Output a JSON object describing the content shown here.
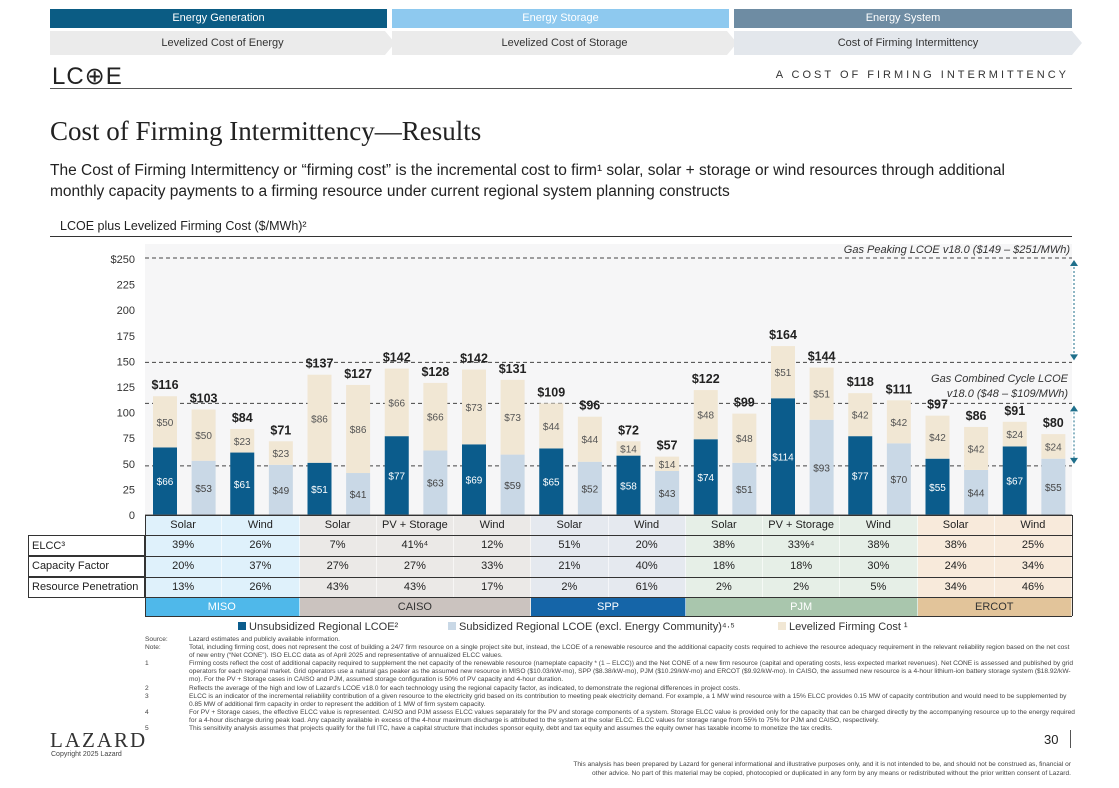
{
  "nav": {
    "tabs": [
      {
        "label": "Energy Generation",
        "color": "#0b5c84"
      },
      {
        "label": "Energy Storage",
        "color": "#8ec9ef"
      },
      {
        "label": "Energy System",
        "color": "#6e8ca3"
      }
    ],
    "subtabs": [
      "Levelized Cost of Energy",
      "Levelized Cost of Storage",
      "Cost of Firming Intermittency"
    ]
  },
  "header": {
    "logo": "LC⊕E",
    "section": "A   COST OF FIRMING INTERMITTENCY"
  },
  "title": "Cost of Firming Intermittency—Results",
  "subtitle": "The Cost of Firming Intermittency or “firming cost” is the incremental cost to firm¹ solar, solar + storage or wind resources through additional monthly capacity payments to a firming resource under current regional system planning constructs",
  "chart_data": {
    "type": "bar",
    "stacked": true,
    "title": "LCOE plus Levelized Firming Cost ($/MWh)²",
    "ylim": [
      0,
      250
    ],
    "yticks": [
      0,
      25,
      50,
      75,
      100,
      125,
      150,
      175,
      200,
      225,
      250
    ],
    "ytick_prefix": "$ on top tick",
    "ytick_labels": [
      "0",
      "25",
      "50",
      "75",
      "100",
      "125",
      "150",
      "175",
      "200",
      "225",
      "$250"
    ],
    "series_names": [
      "Unsubsidized Regional LCOE²",
      "Subsidized Regional LCOE (excl. Energy Community)⁴·⁵",
      "Levelized Firming Cost ¹"
    ],
    "colors": {
      "unsubsidized": "#0b5c8c",
      "subsidized": "#c9d8e6",
      "firming": "#f1e7d4"
    },
    "columns": [
      {
        "region": "MISO",
        "tech": "Solar",
        "unsub": 66,
        "sub": 53,
        "firming": 50,
        "total_unsub": "$116",
        "total_sub": "$103"
      },
      {
        "region": "MISO",
        "tech": "Wind",
        "unsub": 61,
        "sub": 49,
        "firming": 23,
        "total_unsub": "$84",
        "total_sub": "$71"
      },
      {
        "region": "CAISO",
        "tech": "Solar",
        "unsub": 51,
        "sub": 41,
        "firming": 86,
        "total_unsub": "$137",
        "total_sub": "$127"
      },
      {
        "region": "CAISO",
        "tech": "PV + Storage",
        "unsub": 77,
        "sub": 63,
        "firming": 66,
        "total_unsub": "$142",
        "total_sub": "$128"
      },
      {
        "region": "CAISO",
        "tech": "Wind",
        "unsub": 69,
        "sub": 59,
        "firming": 73,
        "total_unsub": "$142",
        "total_sub": "$131"
      },
      {
        "region": "SPP",
        "tech": "Solar",
        "unsub": 65,
        "sub": 52,
        "firming": 44,
        "total_unsub": "$109",
        "total_sub": "$96"
      },
      {
        "region": "SPP",
        "tech": "Wind",
        "unsub": 58,
        "sub": 43,
        "firming": 14,
        "total_unsub": "$72",
        "total_sub": "$57"
      },
      {
        "region": "PJM",
        "tech": "Solar",
        "unsub": 74,
        "sub": 51,
        "firming": 48,
        "total_unsub": "$122",
        "total_sub": "$99"
      },
      {
        "region": "PJM",
        "tech": "PV + Storage",
        "unsub": 114,
        "sub": 93,
        "firming": 51,
        "total_unsub": "$164",
        "total_sub": "$144"
      },
      {
        "region": "PJM",
        "tech": "Wind",
        "unsub": 77,
        "sub": 70,
        "firming": 42,
        "total_unsub": "$118",
        "total_sub": "$111"
      },
      {
        "region": "ERCOT",
        "tech": "Solar",
        "unsub": 55,
        "sub": 44,
        "firming": 42,
        "total_unsub": "$97",
        "total_sub": "$86"
      },
      {
        "region": "ERCOT",
        "tech": "Wind",
        "unsub": 67,
        "sub": 55,
        "firming": 24,
        "total_unsub": "$91",
        "total_sub": "$80"
      }
    ],
    "reference_ranges": [
      {
        "label": "Gas Peaking LCOE v18.0 ($149 – $251/MWh)",
        "low": 149,
        "high": 251
      },
      {
        "label_line1": "Gas Combined Cycle LCOE",
        "label_line2": "v18.0 ($48 – $109/MWh)",
        "low": 48,
        "high": 109
      }
    ]
  },
  "table": {
    "row_labels": [
      "ELCC³",
      "Capacity Factor",
      "Resource Penetration"
    ],
    "elcc": [
      "39%",
      "26%",
      "7%",
      "41%⁴",
      "12%",
      "51%",
      "20%",
      "38%",
      "33%⁴",
      "38%",
      "38%",
      "25%"
    ],
    "capacity_factor": [
      "20%",
      "37%",
      "27%",
      "27%",
      "33%",
      "21%",
      "40%",
      "18%",
      "18%",
      "30%",
      "24%",
      "34%"
    ],
    "penetration": [
      "13%",
      "26%",
      "43%",
      "43%",
      "17%",
      "2%",
      "61%",
      "2%",
      "2%",
      "5%",
      "34%",
      "46%"
    ],
    "regions": [
      {
        "name": "MISO",
        "span": 2,
        "bg": "#dff1fb",
        "label_bg": "#4fb8ea",
        "label_color": "#ffffff"
      },
      {
        "name": "CAISO",
        "span": 3,
        "bg": "#ebe9e7",
        "label_bg": "#cbc3bf",
        "label_color": "#333333"
      },
      {
        "name": "SPP",
        "span": 2,
        "bg": "#e5e9ef",
        "label_bg": "#1565a8",
        "label_color": "#ffffff"
      },
      {
        "name": "PJM",
        "span": 3,
        "bg": "#e6efe7",
        "label_bg": "#a9c6ad",
        "label_color": "#ffffff"
      },
      {
        "name": "ERCOT",
        "span": 2,
        "bg": "#f8eadb",
        "label_bg": "#e2c49a",
        "label_color": "#333333"
      }
    ]
  },
  "notes": [
    [
      "Source:",
      "Lazard estimates and publicly available information."
    ],
    [
      "Note:",
      "Total, including firming cost, does not represent the cost of building a 24/7 firm resource on a single project site but, instead, the LCOE of a renewable resource and the additional capacity costs required to achieve the resource adequacy requirement in the relevant reliability region based on the net cost of new entry (“Net CONE”). ISO ELCC data as of April 2025 and representative of annualized ELCC values."
    ],
    [
      "1",
      "Firming costs reflect the cost of additional capacity required to supplement the net capacity of the renewable resource (nameplate capacity * (1 – ELCC)) and the Net CONE of a new firm resource (capital and operating costs, less expected market revenues). Net CONE is assessed and published by grid operators for each regional market. Grid operators use a natural gas peaker as the assumed new resource in MISO ($10.03/kW-mo), SPP ($8.38/kW-mo), PJM ($10.29/kW-mo) and ERCOT ($9.92/kW-mo). In CAISO, the assumed new resource is a 4-hour lithium-ion battery storage system ($18.92/kW-mo). For the PV + Storage cases in CAISO and PJM, assumed storage configuration is 50% of PV capacity and 4-hour duration."
    ],
    [
      "2",
      "Reflects the average of the high and low of Lazard’s LCOE v18.0 for each technology using the regional capacity factor, as indicated, to demonstrate the regional differences in project costs."
    ],
    [
      "3",
      "ELCC is an indicator of the incremental reliability contribution of a given resource to the electricity grid based on its contribution to meeting peak electricity demand. For example, a 1 MW wind resource with a 15% ELCC provides 0.15 MW of capacity contribution and would need to be supplemented by 0.85 MW of additional firm capacity in order to represent the addition of 1 MW of firm system capacity."
    ],
    [
      "4",
      "For PV + Storage cases, the effective ELCC value is represented. CAISO and PJM assess ELCC values separately for the PV and storage components of a system. Storage ELCC value is provided only for the capacity that can be charged directly by the accompanying resource up to the energy required for a 4-hour discharge during peak load. Any capacity available in excess of the 4-hour maximum discharge is attributed to the system at the solar ELCC. ELCC values for storage range from 55% to 75% for PJM and CAISO, respectively."
    ],
    [
      "5",
      "This sensitivity analysis assumes that projects qualify for the full ITC, have a capital structure that includes sponsor equity, debt and tax equity and assumes the equity owner has taxable income to monetize the tax credits."
    ]
  ],
  "footer": {
    "brand": "LAZARD",
    "copyright": "Copyright 2025 Lazard",
    "page": "30",
    "disclaimer_1": "This analysis has been prepared by Lazard for general informational and illustrative purposes only, and it is not intended to be, and should not be construed as, financial or",
    "disclaimer_2": "other advice. No part of this material may be copied, photocopied or duplicated in any form by any means or redistributed without the prior written consent of Lazard."
  }
}
